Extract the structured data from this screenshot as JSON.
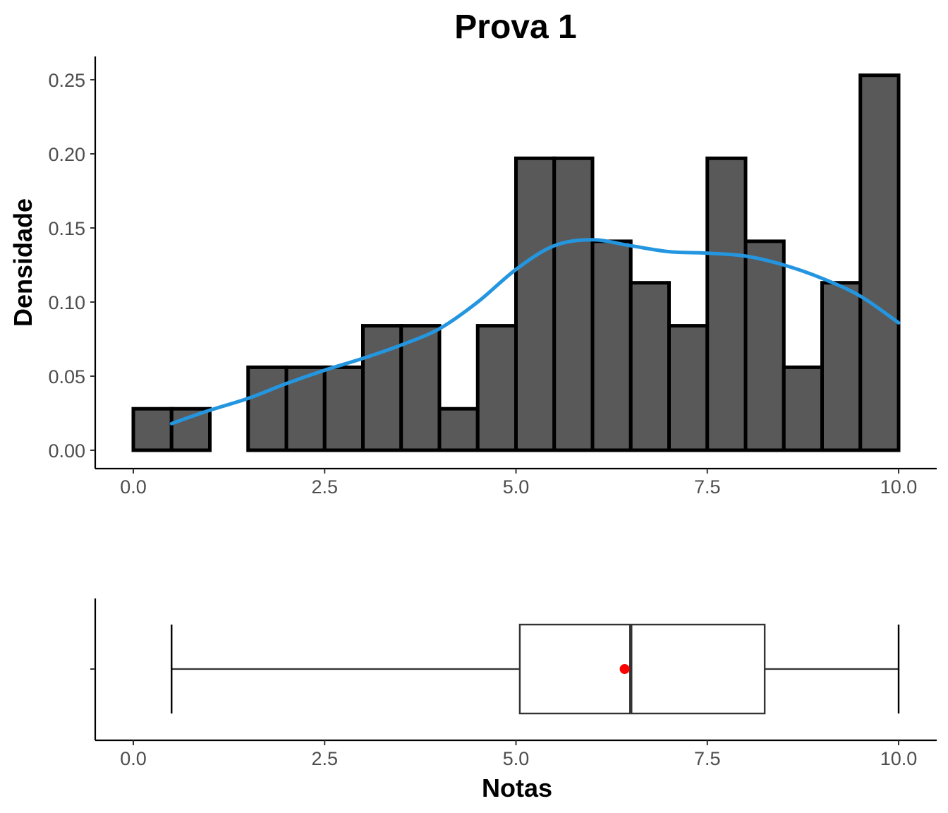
{
  "chart_data": [
    {
      "type": "histogram",
      "title": "Prova 1",
      "xlabel": "",
      "ylabel": "Densidade",
      "xlim": [
        -0.5,
        10.5
      ],
      "ylim": [
        0,
        0.25
      ],
      "x_ticks": [
        "0.0",
        "2.5",
        "5.0",
        "7.5",
        "10.0"
      ],
      "y_ticks": [
        "0.00",
        "0.05",
        "0.10",
        "0.15",
        "0.20",
        "0.25"
      ],
      "grid": false,
      "bins": [
        {
          "start": 0.0,
          "end": 0.5,
          "density": 0.028
        },
        {
          "start": 0.5,
          "end": 1.0,
          "density": 0.028
        },
        {
          "start": 1.0,
          "end": 1.5,
          "density": 0.0
        },
        {
          "start": 1.5,
          "end": 2.0,
          "density": 0.056
        },
        {
          "start": 2.0,
          "end": 2.5,
          "density": 0.056
        },
        {
          "start": 2.5,
          "end": 3.0,
          "density": 0.056
        },
        {
          "start": 3.0,
          "end": 3.5,
          "density": 0.084
        },
        {
          "start": 3.5,
          "end": 4.0,
          "density": 0.084
        },
        {
          "start": 4.0,
          "end": 4.5,
          "density": 0.028
        },
        {
          "start": 4.5,
          "end": 5.0,
          "density": 0.084
        },
        {
          "start": 5.0,
          "end": 5.5,
          "density": 0.197
        },
        {
          "start": 5.5,
          "end": 6.0,
          "density": 0.197
        },
        {
          "start": 6.0,
          "end": 6.5,
          "density": 0.141
        },
        {
          "start": 6.5,
          "end": 7.0,
          "density": 0.113
        },
        {
          "start": 7.0,
          "end": 7.5,
          "density": 0.084
        },
        {
          "start": 7.5,
          "end": 8.0,
          "density": 0.197
        },
        {
          "start": 8.0,
          "end": 8.5,
          "density": 0.141
        },
        {
          "start": 8.5,
          "end": 9.0,
          "density": 0.056
        },
        {
          "start": 9.0,
          "end": 9.5,
          "density": 0.113
        },
        {
          "start": 9.5,
          "end": 10.0,
          "density": 0.253
        }
      ],
      "bar_fill": "#595959",
      "bar_stroke": "#000000",
      "density_curve": {
        "color": "#2496e0",
        "points": [
          [
            0.5,
            0.018
          ],
          [
            1.0,
            0.027
          ],
          [
            1.5,
            0.035
          ],
          [
            2.0,
            0.045
          ],
          [
            2.5,
            0.054
          ],
          [
            3.0,
            0.062
          ],
          [
            3.5,
            0.071
          ],
          [
            4.0,
            0.082
          ],
          [
            4.5,
            0.1
          ],
          [
            5.0,
            0.122
          ],
          [
            5.5,
            0.138
          ],
          [
            6.0,
            0.142
          ],
          [
            6.5,
            0.138
          ],
          [
            7.0,
            0.134
          ],
          [
            7.5,
            0.133
          ],
          [
            8.0,
            0.131
          ],
          [
            8.5,
            0.125
          ],
          [
            9.0,
            0.116
          ],
          [
            9.5,
            0.104
          ],
          [
            10.0,
            0.086
          ]
        ]
      }
    },
    {
      "type": "boxplot",
      "xlabel": "Notas",
      "xlim": [
        -0.5,
        10.5
      ],
      "x_ticks": [
        "0.0",
        "2.5",
        "5.0",
        "7.5",
        "10.0"
      ],
      "min": 0.5,
      "q1": 5.05,
      "median": 6.5,
      "q3": 8.25,
      "max": 10.0,
      "mean": 6.42,
      "mean_color": "#ff0000",
      "box_fill": "#ffffff",
      "box_stroke": "#333333"
    }
  ]
}
